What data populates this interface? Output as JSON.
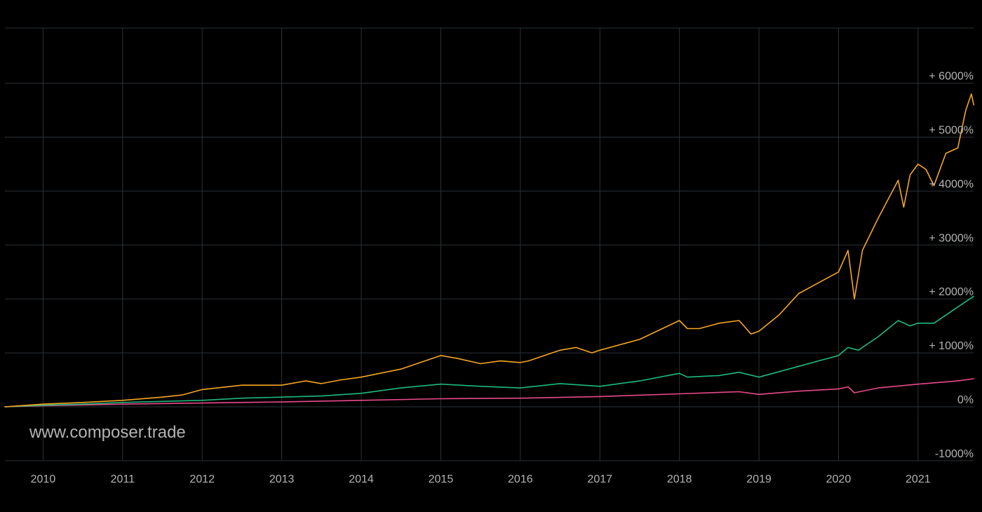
{
  "watermark": "www.composer.trade",
  "chart_data": {
    "type": "line",
    "title": "",
    "xlabel": "",
    "ylabel": "",
    "xlim": [
      2009.52,
      2021.7
    ],
    "ylim": [
      -1000,
      6000
    ],
    "grid": true,
    "x_ticks": [
      {
        "value": 2010,
        "label": "2010"
      },
      {
        "value": 2011,
        "label": "2011"
      },
      {
        "value": 2012,
        "label": "2012"
      },
      {
        "value": 2013,
        "label": "2013"
      },
      {
        "value": 2014,
        "label": "2014"
      },
      {
        "value": 2015,
        "label": "2015"
      },
      {
        "value": 2016,
        "label": "2016"
      },
      {
        "value": 2017,
        "label": "2017"
      },
      {
        "value": 2018,
        "label": "2018"
      },
      {
        "value": 2019,
        "label": "2019"
      },
      {
        "value": 2020,
        "label": "2020"
      },
      {
        "value": 2021,
        "label": "2021"
      }
    ],
    "y_ticks": [
      {
        "value": 6000,
        "label": "+ 6000%"
      },
      {
        "value": 5000,
        "label": "+ 5000%"
      },
      {
        "value": 4000,
        "label": "+ 4000%"
      },
      {
        "value": 3000,
        "label": "+ 3000%"
      },
      {
        "value": 2000,
        "label": "+ 2000%"
      },
      {
        "value": 1000,
        "label": "+ 1000%"
      },
      {
        "value": 0,
        "label": "0%"
      },
      {
        "value": -1000,
        "label": "-1000%"
      }
    ],
    "colors": {
      "grid": "#2a3236",
      "tick_text": "#b3b3b3"
    },
    "series": [
      {
        "color": "#f5a623",
        "x": [
          2009.52,
          2010.0,
          2010.5,
          2011.0,
          2011.5,
          2011.75,
          2012.0,
          2012.5,
          2013.0,
          2013.3,
          2013.5,
          2013.75,
          2014.0,
          2014.5,
          2015.0,
          2015.2,
          2015.5,
          2015.75,
          2016.0,
          2016.1,
          2016.5,
          2016.7,
          2016.9,
          2017.0,
          2017.5,
          2018.0,
          2018.1,
          2018.25,
          2018.5,
          2018.75,
          2018.9,
          2019.0,
          2019.25,
          2019.5,
          2019.75,
          2020.0,
          2020.12,
          2020.2,
          2020.3,
          2020.5,
          2020.75,
          2020.82,
          2020.9,
          2021.0,
          2021.1,
          2021.2,
          2021.35,
          2021.5,
          2021.6,
          2021.67,
          2021.7
        ],
        "y": [
          0,
          50,
          80,
          120,
          180,
          220,
          320,
          400,
          400,
          480,
          430,
          500,
          550,
          700,
          950,
          900,
          800,
          850,
          820,
          850,
          1050,
          1100,
          1000,
          1050,
          1250,
          1600,
          1450,
          1450,
          1550,
          1600,
          1350,
          1400,
          1700,
          2100,
          2300,
          2500,
          2900,
          2000,
          2900,
          3500,
          4200,
          3700,
          4300,
          4500,
          4400,
          4100,
          4700,
          4800,
          5500,
          5800,
          5600
        ]
      },
      {
        "color": "#1db97f",
        "x": [
          2009.52,
          2010.0,
          2010.5,
          2011.0,
          2011.5,
          2012.0,
          2012.5,
          2013.0,
          2013.5,
          2014.0,
          2014.5,
          2015.0,
          2015.5,
          2016.0,
          2016.5,
          2017.0,
          2017.5,
          2018.0,
          2018.1,
          2018.5,
          2018.75,
          2019.0,
          2019.5,
          2020.0,
          2020.12,
          2020.25,
          2020.5,
          2020.75,
          2020.9,
          2021.0,
          2021.2,
          2021.5,
          2021.7
        ],
        "y": [
          0,
          30,
          50,
          80,
          100,
          120,
          160,
          180,
          200,
          250,
          350,
          420,
          380,
          350,
          430,
          380,
          480,
          620,
          550,
          580,
          640,
          550,
          750,
          950,
          1100,
          1050,
          1300,
          1600,
          1500,
          1550,
          1550,
          1850,
          2050
        ]
      },
      {
        "color": "#e84a8a",
        "x": [
          2009.52,
          2010.0,
          2011.0,
          2012.0,
          2013.0,
          2014.0,
          2015.0,
          2016.0,
          2017.0,
          2018.0,
          2018.75,
          2019.0,
          2019.5,
          2020.0,
          2020.12,
          2020.2,
          2020.5,
          2021.0,
          2021.5,
          2021.7
        ],
        "y": [
          0,
          20,
          50,
          70,
          90,
          120,
          150,
          160,
          190,
          240,
          280,
          230,
          290,
          330,
          370,
          260,
          350,
          420,
          480,
          520
        ]
      }
    ]
  }
}
